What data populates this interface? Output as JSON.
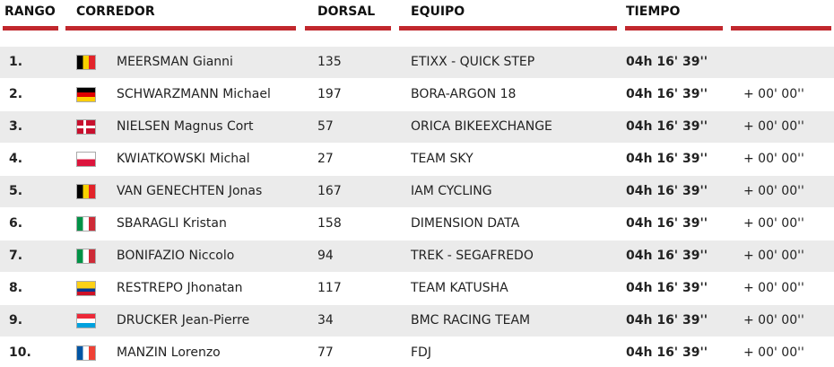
{
  "table": {
    "headers": [
      "RANGO",
      "CORREDOR",
      "DORSAL",
      "EQUIPO",
      "TIEMPO"
    ],
    "rows": [
      [
        "1.",
        "MEERSMAN Gianni",
        135,
        "ETIXX - QUICK STEP",
        "04h 16' 39''"
      ],
      [
        "2.",
        "SCHWARZMANN Michael",
        197,
        "BORA-ARGON 18",
        "04h 16' 39''",
        "+ 00' 00''"
      ],
      [
        "3.",
        "NIELSEN Magnus Cort",
        57,
        "ORICA BIKEEXCHANGE",
        "04h 16' 39''",
        "+ 00' 00''"
      ],
      [
        "4.",
        "KWIATKOWSKI Michal",
        27,
        "TEAM SKY",
        "04h 16' 39''",
        "+ 00' 00''"
      ],
      [
        "5.",
        "VAN GENECHTEN Jonas",
        167,
        "IAM CYCLING",
        "04h 16' 39''",
        "+ 00' 00''"
      ],
      [
        "6.",
        "SBARAGLI Kristan",
        158,
        "DIMENSION DATA",
        "04h 16' 39''",
        "+ 00' 00''"
      ],
      [
        "7.",
        "BONIFAZIO Niccolo",
        94,
        "TREK - SEGAFREDO",
        "04h 16' 39''",
        "+ 00' 00''"
      ],
      [
        "8.",
        "RESTREPO Jhonatan",
        117,
        "TEAM KATUSHA",
        "04h 16' 39''",
        "+ 00' 00''"
      ],
      [
        "9.",
        "DRUCKER Jean-Pierre",
        34,
        "BMC RACING TEAM",
        "04h 16' 39''",
        "+ 00' 00''"
      ],
      [
        "10.",
        "MANZIN Lorenzo",
        77,
        "FDJ",
        "04h 16' 39''",
        "+ 00' 00''"
      ]
    ]
  }
}
